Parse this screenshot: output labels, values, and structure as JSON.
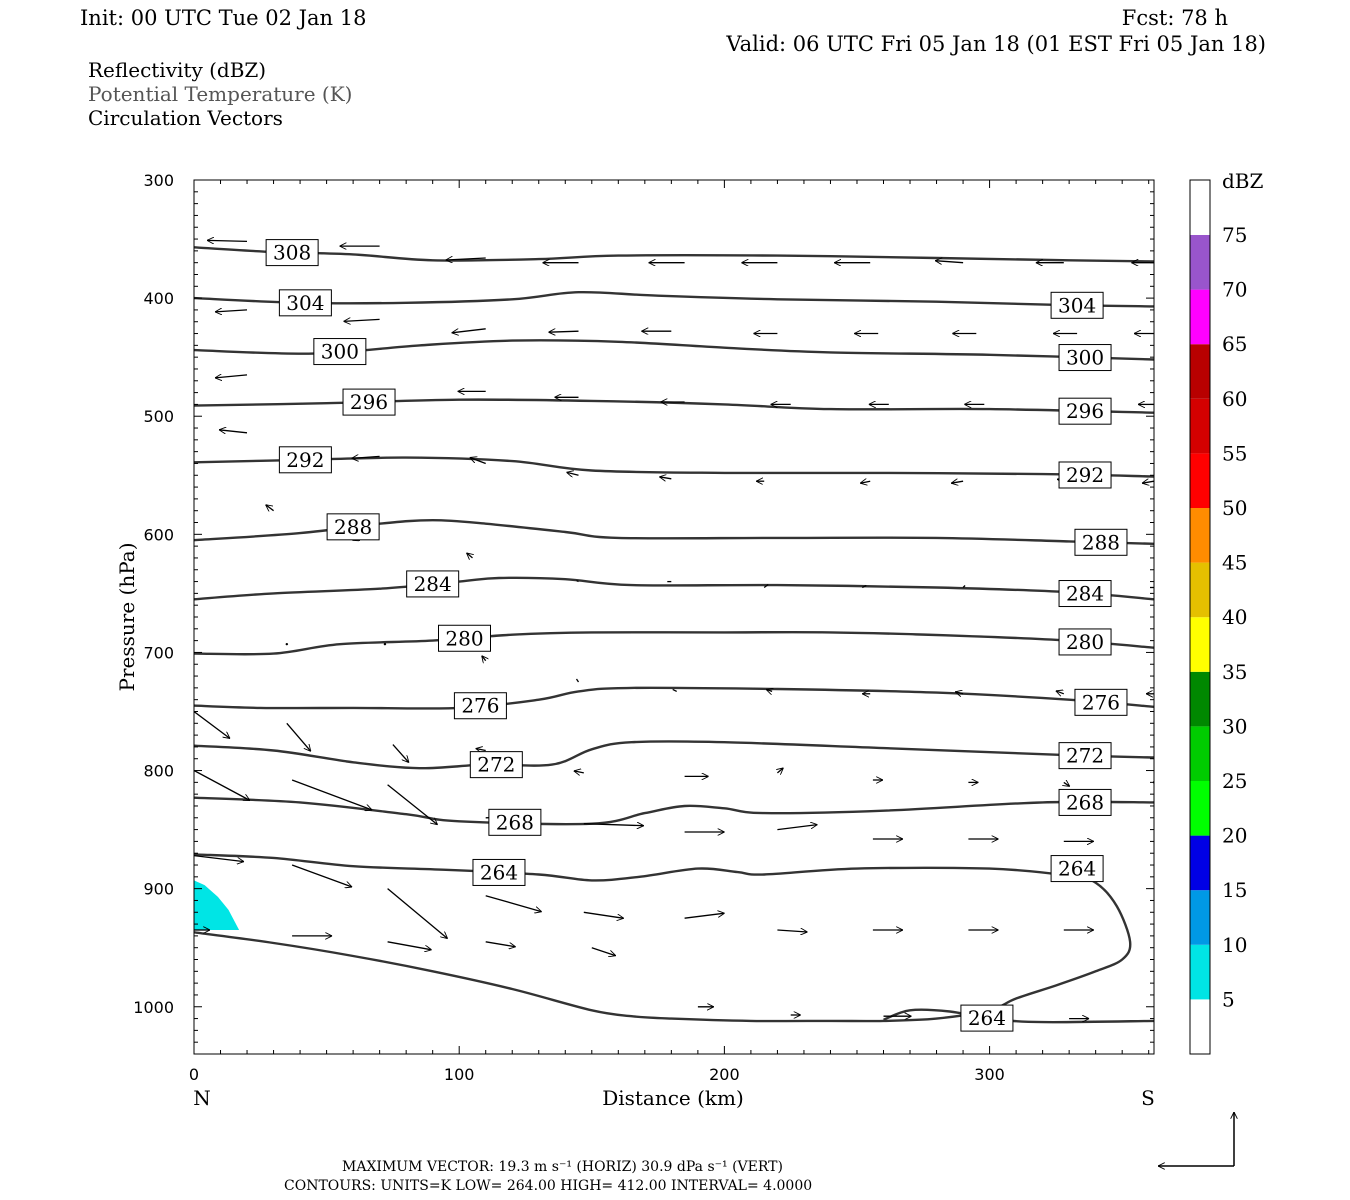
{
  "header": {
    "init": "Init: 00 UTC Tue 02 Jan 18",
    "fcst": "Fcst:   78 h",
    "valid": "Valid: 06 UTC Fri 05 Jan 18 (01 EST Fri 05 Jan 18)"
  },
  "legend": {
    "line1": "Reflectivity (dBZ)",
    "line2": "Potential Temperature (K)",
    "line3": "Circulation Vectors"
  },
  "footer": {
    "line1": "MAXIMUM VECTOR:  19.3 m s⁻¹ (HORIZ)          30.9 dPa s⁻¹ (VERT)",
    "line2": "CONTOURS:  UNITS=K  LOW=  264.00       HIGH=  412.00       INTERVAL=    4.0000"
  },
  "colors": {
    "contour": "#333333",
    "refl_5": "#00e5e5"
  },
  "chart_data": {
    "type": "cross-section",
    "xlabel": "Distance (km)",
    "ylabel": "Pressure (hPa)",
    "xlim": [
      0,
      362
    ],
    "ylim": [
      1040,
      300
    ],
    "x_ticks": [
      0,
      100,
      200,
      300
    ],
    "y_ticks": [
      300,
      400,
      500,
      600,
      700,
      800,
      900,
      1000
    ],
    "x_end_labels": {
      "left": "N",
      "right": "S"
    },
    "colorbar": {
      "unit": "dBZ",
      "levels": [
        5,
        10,
        15,
        20,
        25,
        30,
        35,
        40,
        45,
        50,
        55,
        60,
        65,
        70,
        75
      ],
      "colors": [
        "#00e5e5",
        "#0099e5",
        "#0000e5",
        "#00ff00",
        "#00cc00",
        "#008800",
        "#ffff00",
        "#e5c000",
        "#ff8c00",
        "#ff0000",
        "#d40000",
        "#b80000",
        "#ff00ff",
        "#9955cc"
      ]
    },
    "reflectivity_areas": [
      {
        "dbz_min": 5,
        "polygon": [
          [
            0,
            893
          ],
          [
            4,
            897
          ],
          [
            9,
            907
          ],
          [
            13,
            918
          ],
          [
            17,
            935
          ],
          [
            0,
            935
          ]
        ]
      }
    ],
    "theta_contours": [
      {
        "k": 308,
        "label_x": 37,
        "points": [
          [
            0,
            357
          ],
          [
            30,
            361
          ],
          [
            60,
            363
          ],
          [
            90,
            368
          ],
          [
            130,
            367
          ],
          [
            160,
            364
          ],
          [
            220,
            364
          ],
          [
            280,
            366
          ],
          [
            330,
            368
          ],
          [
            362,
            369
          ]
        ]
      },
      {
        "k": 304,
        "label_x": 42,
        "points": [
          [
            0,
            400
          ],
          [
            40,
            404
          ],
          [
            80,
            404
          ],
          [
            120,
            401
          ],
          [
            145,
            395
          ],
          [
            175,
            398
          ],
          [
            220,
            401
          ],
          [
            280,
            403
          ],
          [
            330,
            406
          ],
          [
            362,
            407
          ]
        ]
      },
      {
        "k": 300,
        "label_x": 55,
        "points": [
          [
            0,
            444
          ],
          [
            45,
            447
          ],
          [
            85,
            440
          ],
          [
            120,
            436
          ],
          [
            160,
            437
          ],
          [
            200,
            442
          ],
          [
            240,
            446
          ],
          [
            300,
            448
          ],
          [
            362,
            452
          ]
        ]
      },
      {
        "k": 296,
        "label_x": 66,
        "points": [
          [
            0,
            491
          ],
          [
            50,
            489
          ],
          [
            100,
            486
          ],
          [
            150,
            487
          ],
          [
            200,
            490
          ],
          [
            240,
            494
          ],
          [
            300,
            494
          ],
          [
            362,
            497
          ]
        ]
      },
      {
        "k": 292,
        "label_x": 42,
        "points": [
          [
            0,
            539
          ],
          [
            40,
            537
          ],
          [
            80,
            535
          ],
          [
            120,
            538
          ],
          [
            150,
            546
          ],
          [
            200,
            548
          ],
          [
            260,
            548
          ],
          [
            320,
            549
          ],
          [
            362,
            551
          ]
        ]
      },
      {
        "k": 288,
        "label_x": 60,
        "points": [
          [
            0,
            605
          ],
          [
            40,
            599
          ],
          [
            70,
            591
          ],
          [
            90,
            588
          ],
          [
            110,
            591
          ],
          [
            140,
            598
          ],
          [
            160,
            603
          ],
          [
            220,
            603
          ],
          [
            280,
            603
          ],
          [
            330,
            606
          ],
          [
            362,
            608
          ]
        ]
      },
      {
        "k": 284,
        "label_x": 90,
        "points": [
          [
            0,
            655
          ],
          [
            30,
            650
          ],
          [
            70,
            646
          ],
          [
            100,
            640
          ],
          [
            115,
            637
          ],
          [
            140,
            638
          ],
          [
            165,
            643
          ],
          [
            220,
            643
          ],
          [
            280,
            645
          ],
          [
            330,
            649
          ],
          [
            362,
            655
          ]
        ]
      },
      {
        "k": 280,
        "label_x": 102,
        "points": [
          [
            0,
            701
          ],
          [
            30,
            701
          ],
          [
            55,
            693
          ],
          [
            90,
            690
          ],
          [
            120,
            685
          ],
          [
            150,
            683
          ],
          [
            200,
            683
          ],
          [
            240,
            683
          ],
          [
            290,
            686
          ],
          [
            330,
            690
          ],
          [
            362,
            696
          ]
        ]
      },
      {
        "k": 276,
        "label_x": 108,
        "points": [
          [
            0,
            745
          ],
          [
            25,
            747
          ],
          [
            60,
            747
          ],
          [
            100,
            747
          ],
          [
            130,
            740
          ],
          [
            145,
            733
          ],
          [
            165,
            730
          ],
          [
            220,
            731
          ],
          [
            280,
            734
          ],
          [
            330,
            740
          ],
          [
            362,
            746
          ]
        ]
      },
      {
        "k": 272,
        "label_x": 114,
        "points": [
          [
            0,
            779
          ],
          [
            30,
            783
          ],
          [
            60,
            793
          ],
          [
            85,
            798
          ],
          [
            110,
            795
          ],
          [
            135,
            795
          ],
          [
            150,
            782
          ],
          [
            165,
            776
          ],
          [
            200,
            776
          ],
          [
            260,
            781
          ],
          [
            330,
            787
          ],
          [
            362,
            789
          ]
        ]
      },
      {
        "k": 268,
        "label_x": 121,
        "points": [
          [
            0,
            823
          ],
          [
            40,
            827
          ],
          [
            80,
            837
          ],
          [
            100,
            843
          ],
          [
            150,
            845
          ],
          [
            170,
            836
          ],
          [
            185,
            830
          ],
          [
            200,
            832
          ],
          [
            215,
            836
          ],
          [
            260,
            834
          ],
          [
            320,
            827
          ],
          [
            362,
            827
          ]
        ]
      },
      {
        "k": 264,
        "label_x": 115,
        "points": [
          [
            0,
            871
          ],
          [
            30,
            874
          ],
          [
            60,
            881
          ],
          [
            95,
            884
          ],
          [
            130,
            888
          ],
          [
            150,
            893
          ],
          [
            168,
            890
          ],
          [
            190,
            883
          ],
          [
            205,
            886
          ],
          [
            215,
            888
          ],
          [
            250,
            883
          ],
          [
            300,
            883
          ],
          [
            330,
            889
          ],
          [
            340,
            895
          ],
          [
            348,
            915
          ],
          [
            353,
            945
          ],
          [
            350,
            960
          ],
          [
            340,
            970
          ],
          [
            325,
            982
          ],
          [
            310,
            993
          ],
          [
            300,
            1003
          ],
          [
            280,
            1010
          ],
          [
            260,
            1012
          ],
          [
            240,
            1012
          ],
          [
            210,
            1012
          ],
          [
            180,
            1010
          ],
          [
            165,
            1008
          ],
          [
            150,
            1003
          ],
          [
            120,
            985
          ],
          [
            90,
            970
          ],
          [
            60,
            957
          ],
          [
            30,
            946
          ],
          [
            0,
            937
          ]
        ]
      },
      {
        "k": 264,
        "label_x": 299,
        "points": [
          [
            260,
            1011
          ],
          [
            270,
            1003
          ],
          [
            285,
            1004
          ],
          [
            300,
            1010
          ],
          [
            320,
            1013
          ],
          [
            362,
            1012
          ]
        ]
      }
    ],
    "vectors": [
      [
        20,
        352,
        -20,
        -1
      ],
      [
        70,
        356,
        -20,
        0
      ],
      [
        110,
        366,
        -20,
        2
      ],
      [
        145,
        370,
        -18,
        0
      ],
      [
        185,
        370,
        -18,
        0
      ],
      [
        220,
        370,
        -18,
        0
      ],
      [
        255,
        370,
        -18,
        0
      ],
      [
        290,
        370,
        -14,
        -2
      ],
      [
        328,
        370,
        -14,
        0
      ],
      [
        364,
        370,
        -14,
        0
      ],
      [
        20,
        410,
        -16,
        2
      ],
      [
        70,
        418,
        -18,
        2
      ],
      [
        110,
        426,
        -17,
        4
      ],
      [
        145,
        428,
        -15,
        1
      ],
      [
        180,
        428,
        -15,
        0
      ],
      [
        220,
        430,
        -12,
        0
      ],
      [
        258,
        430,
        -12,
        0
      ],
      [
        295,
        430,
        -12,
        0
      ],
      [
        333,
        430,
        -12,
        0
      ],
      [
        362,
        430,
        -10,
        0
      ],
      [
        20,
        465,
        -16,
        3
      ],
      [
        70,
        478,
        -14,
        4
      ],
      [
        110,
        479,
        -14,
        0
      ],
      [
        145,
        484,
        -12,
        0
      ],
      [
        185,
        488,
        -12,
        0
      ],
      [
        225,
        490,
        -10,
        0
      ],
      [
        262,
        490,
        -10,
        0
      ],
      [
        298,
        490,
        -10,
        0
      ],
      [
        335,
        490,
        -8,
        0
      ],
      [
        362,
        490,
        -8,
        0
      ],
      [
        20,
        514,
        -14,
        -3
      ],
      [
        70,
        534,
        -14,
        2
      ],
      [
        110,
        540,
        -8,
        -6
      ],
      [
        145,
        550,
        -6,
        -3
      ],
      [
        180,
        553,
        -6,
        -2
      ],
      [
        215,
        555,
        -4,
        0
      ],
      [
        255,
        555,
        -5,
        2
      ],
      [
        290,
        555,
        -6,
        2
      ],
      [
        330,
        555,
        -6,
        -2
      ],
      [
        362,
        555,
        -6,
        2
      ],
      [
        30,
        580,
        -4,
        -6
      ],
      [
        65,
        600,
        -7,
        6
      ],
      [
        105,
        620,
        -3,
        -5
      ],
      [
        145,
        640,
        -1,
        -1
      ],
      [
        180,
        640,
        -2,
        0
      ],
      [
        215,
        645,
        2,
        -3
      ],
      [
        252,
        645,
        2,
        -2
      ],
      [
        290,
        645,
        1,
        -2
      ],
      [
        328,
        645,
        2,
        -1
      ],
      [
        362,
        645,
        -2,
        0
      ],
      [
        35,
        693,
        0,
        0
      ],
      [
        72,
        693,
        0,
        0
      ],
      [
        110,
        707,
        -2,
        -5
      ],
      [
        145,
        725,
        -1,
        -3
      ],
      [
        182,
        733,
        -2,
        -2
      ],
      [
        218,
        733,
        -3,
        -2
      ],
      [
        255,
        735,
        -4,
        0
      ],
      [
        290,
        735,
        -4,
        -2
      ],
      [
        328,
        735,
        -4,
        -3
      ],
      [
        362,
        735,
        -4,
        0
      ],
      [
        0,
        750,
        18,
        27
      ],
      [
        35,
        760,
        12,
        28
      ],
      [
        75,
        778,
        8,
        18
      ],
      [
        110,
        783,
        -5,
        -2
      ],
      [
        147,
        802,
        -5,
        -2
      ],
      [
        185,
        805,
        12,
        0
      ],
      [
        220,
        802,
        3,
        -5
      ],
      [
        256,
        808,
        5,
        0
      ],
      [
        292,
        810,
        5,
        0
      ],
      [
        328,
        810,
        3,
        4
      ],
      [
        362,
        810,
        0,
        0
      ],
      [
        0,
        800,
        28,
        30
      ],
      [
        37,
        808,
        40,
        30
      ],
      [
        73,
        812,
        25,
        40
      ],
      [
        110,
        840,
        25,
        -2
      ],
      [
        147,
        845,
        30,
        2
      ],
      [
        185,
        852,
        20,
        0
      ],
      [
        220,
        850,
        20,
        -5
      ],
      [
        256,
        858,
        15,
        0
      ],
      [
        292,
        858,
        15,
        0
      ],
      [
        328,
        860,
        15,
        0
      ],
      [
        362,
        860,
        12,
        0
      ],
      [
        0,
        872,
        25,
        6
      ],
      [
        37,
        880,
        30,
        22
      ],
      [
        73,
        900,
        30,
        50
      ],
      [
        110,
        906,
        28,
        16
      ],
      [
        147,
        920,
        20,
        6
      ],
      [
        185,
        925,
        20,
        -5
      ],
      [
        220,
        935,
        15,
        2
      ],
      [
        256,
        935,
        15,
        0
      ],
      [
        292,
        935,
        15,
        0
      ],
      [
        328,
        935,
        15,
        0
      ],
      [
        362,
        935,
        12,
        0
      ],
      [
        0,
        935,
        8,
        0
      ],
      [
        37,
        940,
        20,
        0
      ],
      [
        73,
        945,
        22,
        8
      ],
      [
        110,
        945,
        15,
        5
      ],
      [
        150,
        950,
        12,
        8
      ],
      [
        190,
        1000,
        8,
        0
      ],
      [
        225,
        1007,
        5,
        0
      ],
      [
        260,
        1008,
        14,
        0
      ],
      [
        295,
        1010,
        10,
        0
      ],
      [
        330,
        1010,
        10,
        0
      ],
      [
        362,
        1010,
        12,
        0
      ]
    ],
    "max_vector": {
      "horiz": "19.3 m s⁻¹",
      "vert": "30.9 dPa s⁻¹"
    },
    "contour_units": "K",
    "contour_low": 264.0,
    "contour_high": 412.0,
    "contour_interval": 4.0
  }
}
